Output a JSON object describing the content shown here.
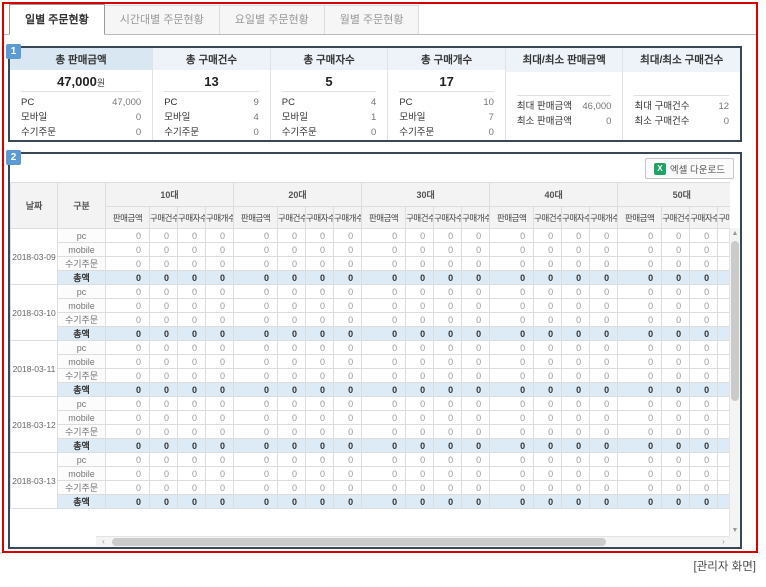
{
  "tabs": [
    {
      "label": "일별 주문현황",
      "active": true
    },
    {
      "label": "시간대별 주문현황",
      "active": false
    },
    {
      "label": "요일별 주문현황",
      "active": false
    },
    {
      "label": "월별 주문현황",
      "active": false
    }
  ],
  "badges": {
    "section1": "1",
    "section2": "2"
  },
  "summary": {
    "cards": [
      {
        "title": "총 판매금액",
        "value": "47,000",
        "unit": "원",
        "rows": [
          {
            "label": "PC",
            "value": "47,000"
          },
          {
            "label": "모바일",
            "value": "0"
          },
          {
            "label": "수기주문",
            "value": "0"
          }
        ]
      },
      {
        "title": "총 구매건수",
        "value": "13",
        "rows": [
          {
            "label": "PC",
            "value": "9"
          },
          {
            "label": "모바일",
            "value": "4"
          },
          {
            "label": "수기주문",
            "value": "0"
          }
        ]
      },
      {
        "title": "총 구매자수",
        "value": "5",
        "rows": [
          {
            "label": "PC",
            "value": "4"
          },
          {
            "label": "모바일",
            "value": "1"
          },
          {
            "label": "수기주문",
            "value": "0"
          }
        ]
      },
      {
        "title": "총 구매개수",
        "value": "17",
        "rows": [
          {
            "label": "PC",
            "value": "10"
          },
          {
            "label": "모바일",
            "value": "7"
          },
          {
            "label": "수기주문",
            "value": "0"
          }
        ]
      },
      {
        "title": "최대/최소 판매금액",
        "rows": [
          {
            "label": "최대 판매금액",
            "value": "46,000"
          },
          {
            "label": "최소 판매금액",
            "value": "0"
          }
        ]
      },
      {
        "title": "최대/최소 구매건수",
        "rows": [
          {
            "label": "최대 구매건수",
            "value": "12"
          },
          {
            "label": "최소 구매건수",
            "value": "0"
          }
        ]
      }
    ]
  },
  "toolbar": {
    "excel_button": "엑셀 다운로드",
    "excel_icon_glyph": "X"
  },
  "table": {
    "fixed_headers": [
      "날짜",
      "구분"
    ],
    "age_groups": [
      "10대",
      "20대",
      "30대",
      "40대",
      "50대"
    ],
    "sub_headers": [
      "판매금액",
      "구매건수",
      "구매자수",
      "구매개수"
    ],
    "dates": [
      "2018-03-09",
      "2018-03-10",
      "2018-03-11",
      "2018-03-12",
      "2018-03-13"
    ],
    "row_types": [
      "pc",
      "mobile",
      "수기주문",
      "총액"
    ],
    "total_row_type": "총액",
    "cell_value": "0"
  },
  "caption": "[관리자 화면]",
  "colors": {
    "frame_border": "#d60000",
    "section_border": "#3a4757",
    "badge_blue": "#5b9bd5",
    "highlight_header": "#d9e7f3",
    "card_header": "#eef3f9",
    "total_row": "#dcebf5",
    "excel_green": "#21a366"
  }
}
